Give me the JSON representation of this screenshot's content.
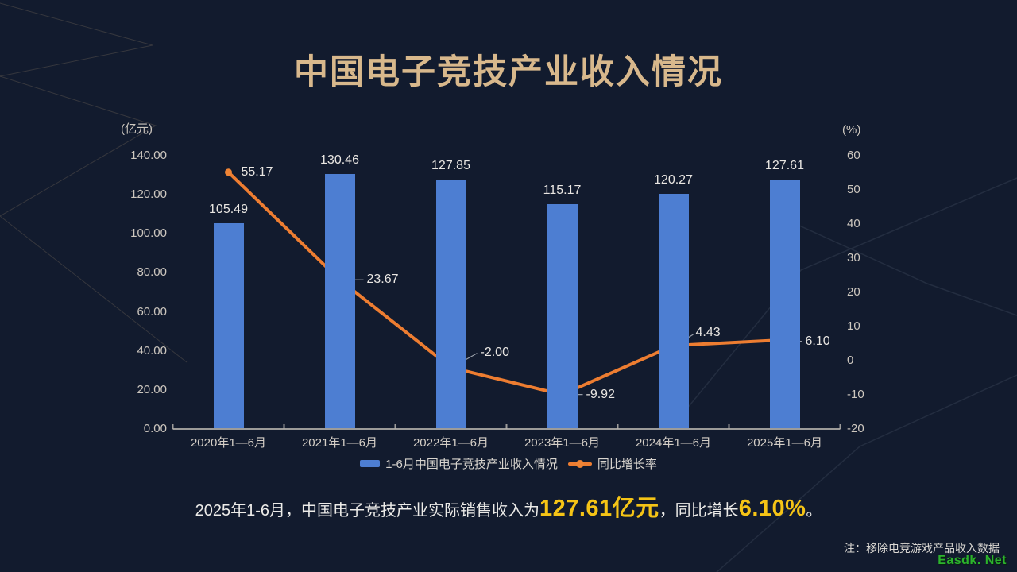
{
  "page": {
    "background": "#121b2e"
  },
  "title": {
    "text": "中国电子竞技产业收入情况",
    "color": "#d8b88c"
  },
  "summary": {
    "prefix": "2025年1-6月，中国电子竞技产业实际销售收入为",
    "revenue": "127.61亿元",
    "middle": "，同比增长",
    "growth": "6.10%",
    "suffix": "。",
    "highlight_color": "#f5c416"
  },
  "note": "注：移除电竞游戏产品收入数据",
  "watermark": "Easdk. Net",
  "chart_data": {
    "type": "bar",
    "combo": "bar+line",
    "categories": [
      "2020年1—6月",
      "2021年1—6月",
      "2022年1—6月",
      "2023年1—6月",
      "2024年1—6月",
      "2025年1—6月"
    ],
    "series": [
      {
        "name": "1-6月中国电子竞技产业收入情况",
        "type": "bar",
        "axis": "left",
        "color": "#4d7ed2",
        "values": [
          105.49,
          130.46,
          127.85,
          115.17,
          120.27,
          127.61
        ]
      },
      {
        "name": "同比增长率",
        "type": "line",
        "axis": "right",
        "color": "#ed7d31",
        "marker_color": "#ef8435",
        "values": [
          55.17,
          23.67,
          -2.0,
          -9.92,
          4.43,
          6.1
        ]
      }
    ],
    "left_axis": {
      "label": "(亿元)",
      "min": 0,
      "max": 140,
      "step": 20,
      "decimals": 2
    },
    "right_axis": {
      "label": "(%)",
      "min": -20,
      "max": 60,
      "step": 10,
      "decimals": 0
    },
    "legend_position": "bottom",
    "grid": false,
    "background": "#121b2e"
  }
}
